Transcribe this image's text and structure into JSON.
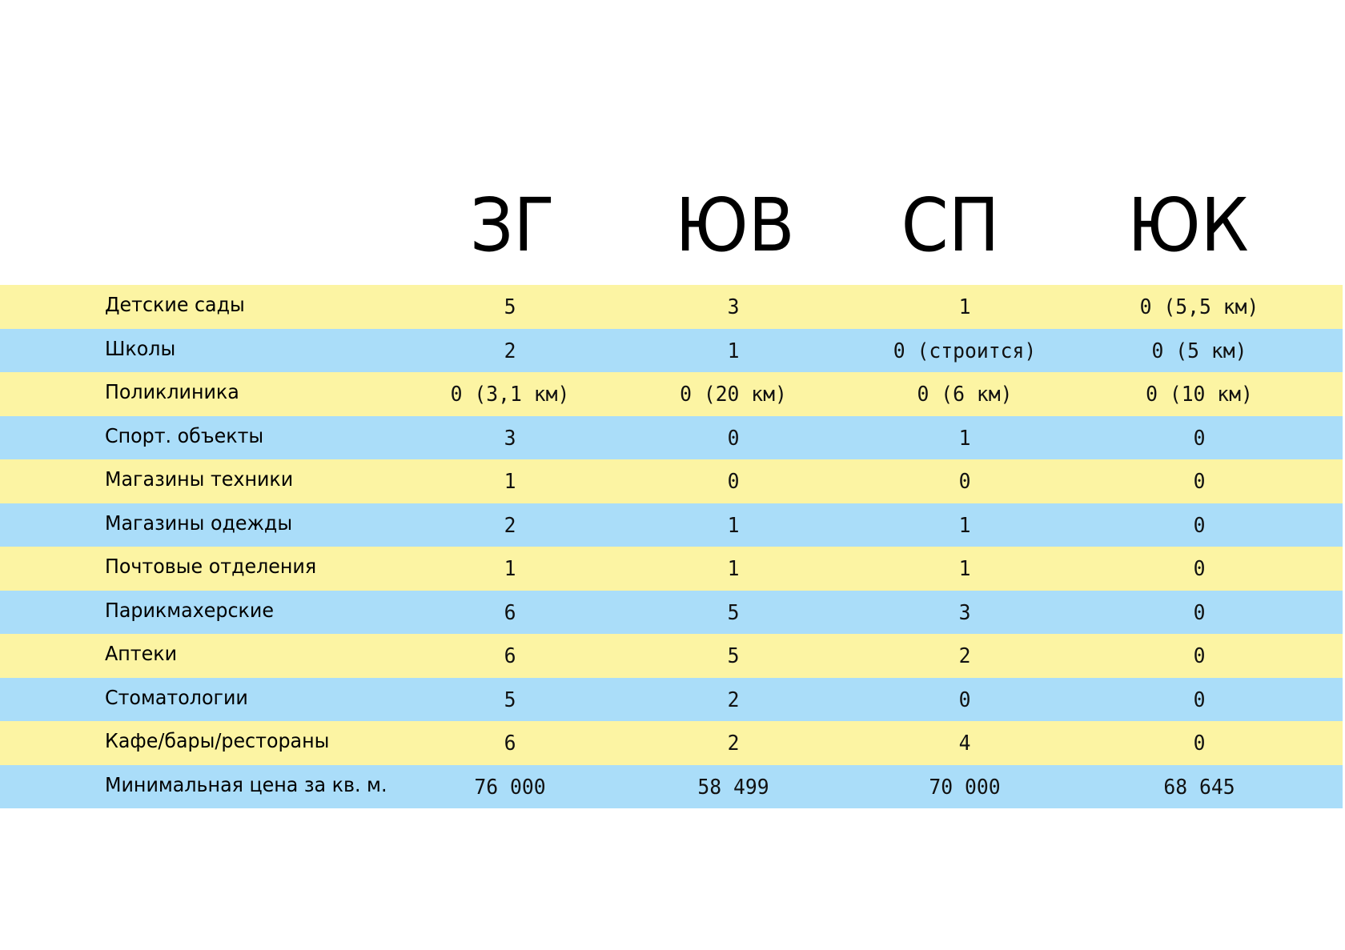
{
  "columns": [
    "ЗГ",
    "ЮВ",
    "СП",
    "ЮК"
  ],
  "colors": {
    "row_yellow": "#FCF4A3",
    "row_blue": "#AADDF9"
  },
  "rows": [
    {
      "label": "Детские сады",
      "values": [
        "5",
        "3",
        "1",
        "0 (5,5 км)"
      ]
    },
    {
      "label": "Школы",
      "values": [
        "2",
        "1",
        "0 (строится)",
        "0 (5 км)"
      ]
    },
    {
      "label": "Поликлиника",
      "values": [
        "0 (3,1 км)",
        "0 (20 км)",
        "0 (6 км)",
        "0 (10 км)"
      ]
    },
    {
      "label": "Спорт. объекты",
      "values": [
        "3",
        "0",
        "1",
        "0"
      ]
    },
    {
      "label": "Магазины техники",
      "values": [
        "1",
        "0",
        "0",
        "0"
      ]
    },
    {
      "label": "Магазины одежды",
      "values": [
        "2",
        "1",
        "1",
        "0"
      ]
    },
    {
      "label": "Почтовые отделения",
      "values": [
        "1",
        "1",
        "1",
        "0"
      ]
    },
    {
      "label": "Парикмахерские",
      "values": [
        "6",
        "5",
        "3",
        "0"
      ]
    },
    {
      "label": "Аптеки",
      "values": [
        "6",
        "5",
        "2",
        "0"
      ]
    },
    {
      "label": "Стоматологии",
      "values": [
        "5",
        "2",
        "0",
        "0"
      ]
    },
    {
      "label": "Кафе/бары/рестораны",
      "values": [
        "6",
        "2",
        "4",
        "0"
      ]
    },
    {
      "label": "Минимальная цена за кв. м.",
      "values": [
        "76 000",
        "58 499",
        "70 000",
        "68 645"
      ]
    }
  ]
}
